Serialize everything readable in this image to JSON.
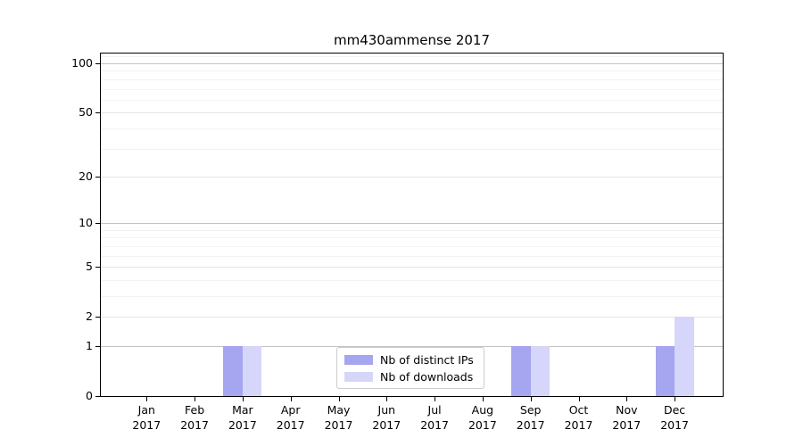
{
  "chart_data": {
    "type": "bar",
    "title": "mm430ammense 2017",
    "categories": [
      "Jan",
      "Feb",
      "Mar",
      "Apr",
      "May",
      "Jun",
      "Jul",
      "Aug",
      "Sep",
      "Oct",
      "Nov",
      "Dec"
    ],
    "x_labels_line2": "2017",
    "series": [
      {
        "name": "Nb of distinct IPs",
        "color": "#a5a5f0",
        "values": [
          0,
          0,
          1,
          0,
          0,
          0,
          0,
          0,
          1,
          0,
          0,
          1
        ]
      },
      {
        "name": "Nb of downloads",
        "color": "#d6d6fa",
        "values": [
          0,
          0,
          1,
          0,
          0,
          0,
          0,
          0,
          1,
          0,
          0,
          2
        ]
      }
    ],
    "y_scale": "log1p",
    "ylim": [
      0,
      116
    ],
    "y_ticks_major": [
      0,
      1,
      2,
      5,
      10,
      20,
      50,
      100
    ],
    "y_ticks_minor": [
      3,
      4,
      6,
      7,
      8,
      9,
      30,
      40,
      60,
      70,
      80,
      90,
      110
    ],
    "y_decade_lines": [
      1,
      10,
      100
    ],
    "grid": true,
    "legend_position": "lower center"
  },
  "colors": {
    "grid_decade": "#c3c3c3",
    "grid_major": "#e4e4e4",
    "grid_minor": "#f2f2f2",
    "axis": "#000000",
    "background": "#ffffff",
    "legend_border": "#cccccc"
  }
}
